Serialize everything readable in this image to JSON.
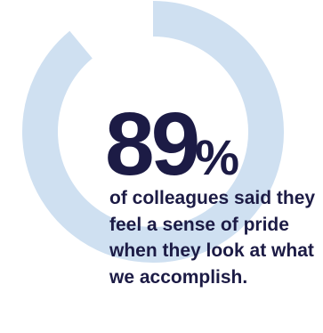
{
  "stat": {
    "value": "89",
    "unit": "%"
  },
  "caption": "of colleagues said they feel a sense of pride when they look at what we accomplish.",
  "ring": {
    "progress_fraction": 0.89,
    "color": "#cfe0f1"
  },
  "colors": {
    "text": "#1c1b45",
    "background": "#ffffff"
  }
}
